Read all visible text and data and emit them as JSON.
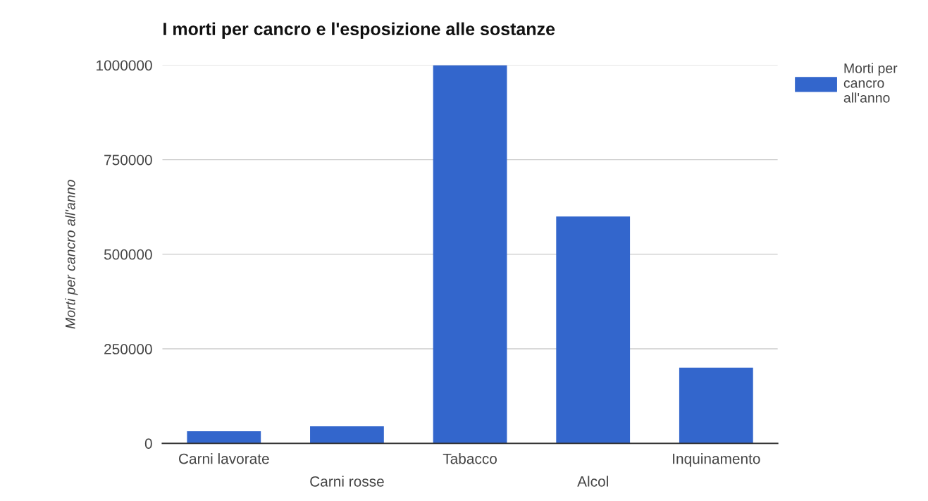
{
  "chart_data": {
    "type": "bar",
    "title": "I morti per cancro e l'esposizione alle sostanze",
    "ylabel": "Morti per cancro all'anno",
    "categories": [
      "Carni lavorate",
      "Carni rosse",
      "Tabacco",
      "Alcol",
      "Inquinamento"
    ],
    "series": [
      {
        "name": "Morti per cancro all'anno",
        "color": "#3366cc",
        "values": [
          32000,
          45000,
          1000000,
          600000,
          200000
        ]
      }
    ],
    "ylim": [
      0,
      1000000
    ],
    "yticks": [
      0,
      250000,
      500000,
      750000,
      1000000
    ],
    "grid": "y",
    "legend": "right"
  }
}
